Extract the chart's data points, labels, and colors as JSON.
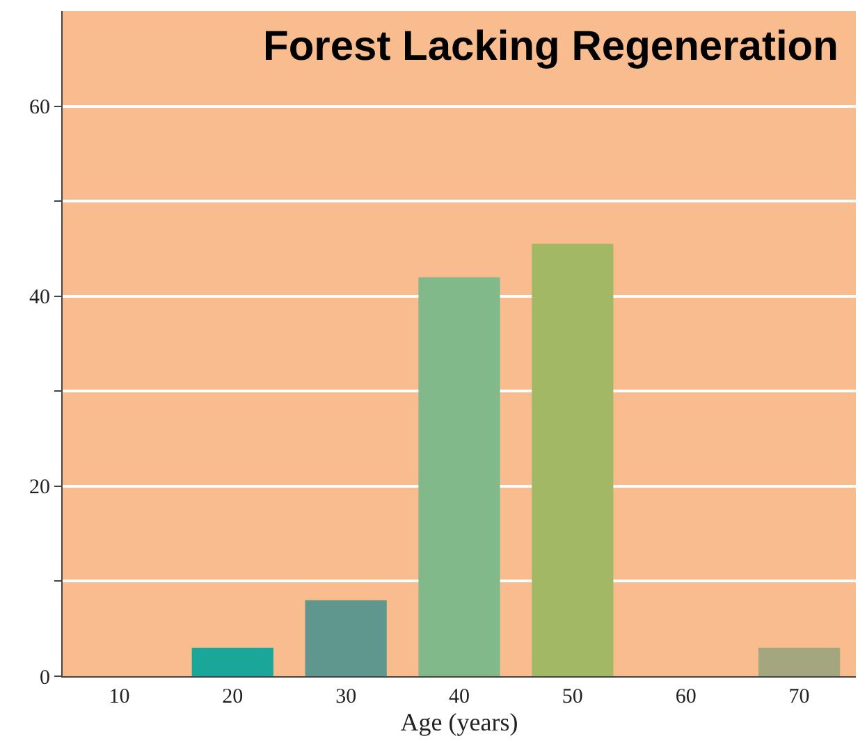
{
  "chart_data": {
    "type": "bar",
    "title": "Forest Lacking Regeneration",
    "xlabel": "Age (years)",
    "categories": [
      "10",
      "20",
      "30",
      "40",
      "50",
      "60",
      "70"
    ],
    "values": [
      0,
      3,
      8,
      42,
      45.5,
      0,
      3
    ],
    "colors": [
      "#1aa79a",
      "#1aa79a",
      "#5f968e",
      "#82b98a",
      "#a3b865",
      "#a3a67f",
      "#a3a67f"
    ],
    "ylim": [
      0,
      70
    ],
    "yticks": [
      0,
      {
        "value": 10,
        "label": null
      },
      20,
      {
        "value": 30,
        "label": null
      },
      40,
      {
        "value": 50,
        "label": null
      },
      60
    ],
    "grid": "y"
  }
}
